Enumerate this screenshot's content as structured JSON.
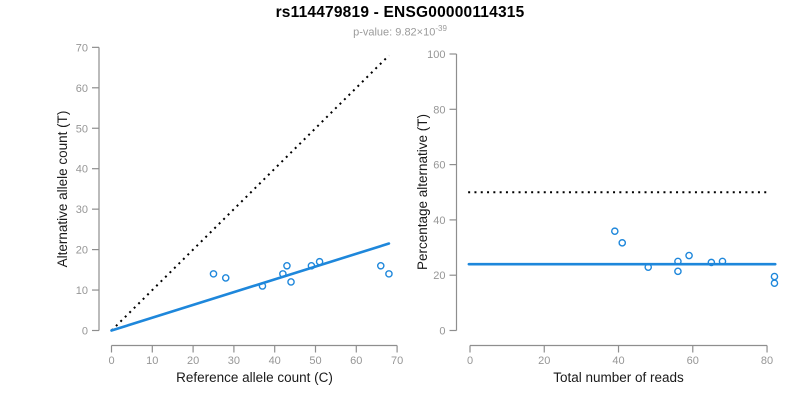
{
  "header": {
    "title": "rs114479819 - ENSG00000114315",
    "subtitle_prefix": "p-value: 9.82×10",
    "subtitle_exponent": "-39"
  },
  "colors": {
    "accent_blue": "#1E87DB",
    "dotted_line_black": "#000000",
    "axis_gray": "#8e8e8e",
    "tick_label_gray": "#969696",
    "axis_title_black": "#1a1a1a",
    "subtitle_gray": "#9b9b9b"
  },
  "chart_data": [
    {
      "type": "scatter",
      "panel": "left",
      "xlabel": "Reference allele count (C)",
      "ylabel": "Alternative allele count (T)",
      "xlim": [
        0,
        70
      ],
      "ylim": [
        0,
        70
      ],
      "xticks": [
        0,
        10,
        20,
        30,
        40,
        50,
        60,
        70
      ],
      "yticks": [
        0,
        10,
        20,
        30,
        40,
        50,
        60,
        70
      ],
      "grid": false,
      "points": [
        [
          25,
          14
        ],
        [
          28,
          13
        ],
        [
          37,
          11
        ],
        [
          42,
          14
        ],
        [
          43,
          16
        ],
        [
          44,
          12
        ],
        [
          49,
          16
        ],
        [
          51,
          17
        ],
        [
          66,
          16
        ],
        [
          68,
          14
        ]
      ],
      "lines": [
        {
          "name": "identity-line",
          "style": "dotted",
          "color": "#000000",
          "x1": 0,
          "y1": 0,
          "x2": 68,
          "y2": 68
        },
        {
          "name": "fit-line",
          "style": "solid",
          "color": "#1E87DB",
          "x1": 0,
          "y1": 0,
          "x2": 68,
          "y2": 21.5
        }
      ]
    },
    {
      "type": "scatter",
      "panel": "right",
      "xlabel": "Total number of reads",
      "ylabel": "Percentage alternative (T)",
      "xlim": [
        0,
        82
      ],
      "ylim": [
        0,
        100
      ],
      "xticks": [
        0,
        20,
        40,
        60,
        80
      ],
      "yticks": [
        0,
        20,
        40,
        60,
        80,
        100
      ],
      "grid": false,
      "points": [
        [
          39,
          35.9
        ],
        [
          41,
          31.7
        ],
        [
          48,
          22.9
        ],
        [
          56,
          25.0
        ],
        [
          56,
          21.4
        ],
        [
          59,
          27.1
        ],
        [
          65,
          24.6
        ],
        [
          68,
          25.0
        ],
        [
          82,
          19.5
        ],
        [
          82,
          17.1
        ]
      ],
      "lines": [
        {
          "name": "expected-50pct-line",
          "style": "dotted",
          "color": "#000000",
          "x1": -0.5,
          "y1": 50,
          "x2": 80.3,
          "y2": 50
        },
        {
          "name": "mean-pct-line",
          "style": "solid",
          "color": "#1E87DB",
          "x1": -0.3,
          "y1": 24,
          "x2": 82.2,
          "y2": 24
        }
      ]
    }
  ]
}
